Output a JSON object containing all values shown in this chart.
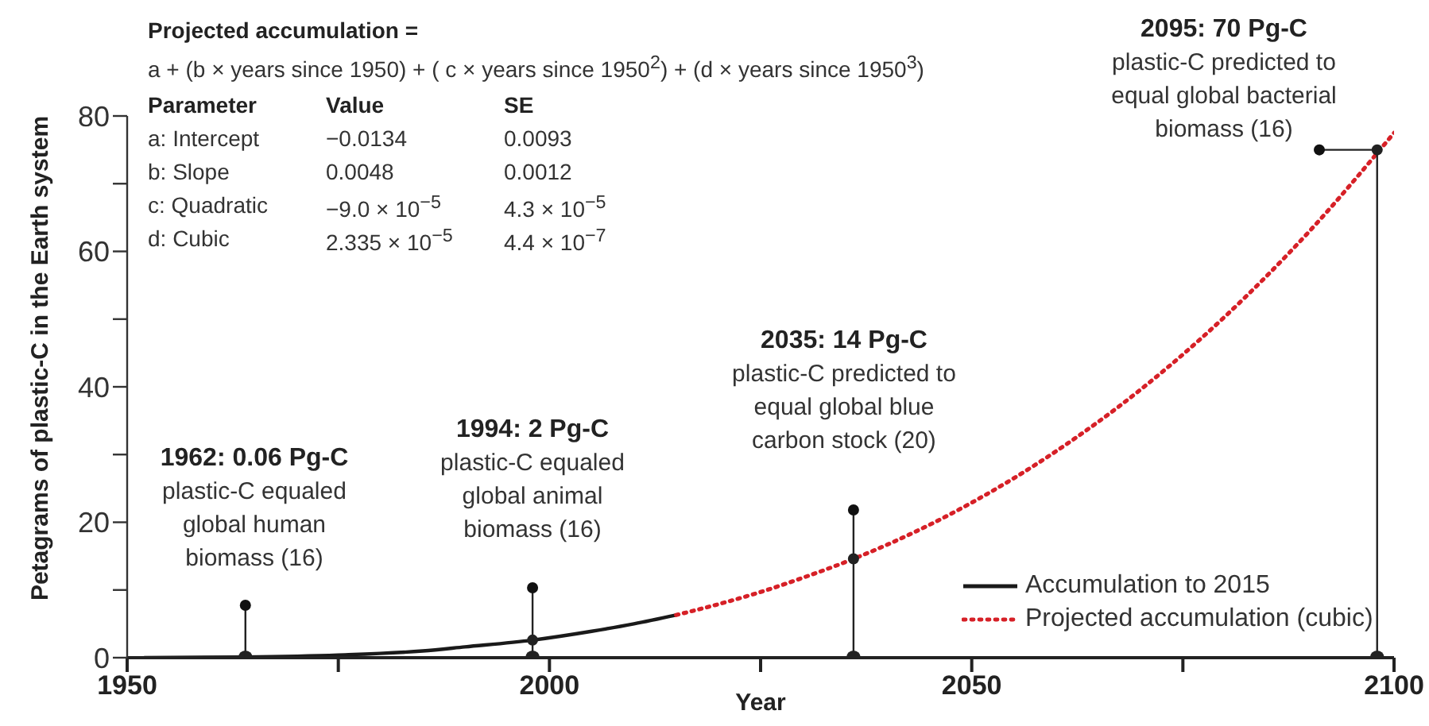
{
  "chart_data": {
    "type": "line",
    "xlabel": "Year",
    "ylabel": "Petagrams of plastic-C in the Earth system",
    "xlim": [
      1950,
      2100
    ],
    "xticks": [
      1950,
      {
        "value": 1975,
        "label": null
      },
      2000,
      {
        "value": 2025,
        "label": null
      },
      2050,
      {
        "value": 2075,
        "label": null
      },
      2100
    ],
    "ylim": [
      0,
      80
    ],
    "yticks": [
      0,
      {
        "value": 10,
        "label": null
      },
      20,
      {
        "value": 30,
        "label": null
      },
      40,
      {
        "value": 50,
        "label": null
      },
      60,
      {
        "value": 70,
        "label": null
      },
      80
    ],
    "grid": false,
    "legend": "bottom right",
    "marker": "none",
    "series": [
      {
        "name": "Accumulation to 2015",
        "color": "#1a1a1a",
        "line_style": "solid",
        "x": [
          1952,
          1964,
          1975,
          1985,
          1990,
          1998,
          2005,
          2010,
          2015
        ],
        "values": [
          0,
          0.1,
          0.4,
          1.0,
          1.6,
          2.6,
          3.9,
          5.0,
          6.3
        ]
      },
      {
        "name": "Projected accumulation (cubic)",
        "color": "#d62027",
        "line_style": "dotted",
        "x": [
          2015,
          2020,
          2025,
          2030,
          2036,
          2040,
          2050,
          2060,
          2070,
          2080,
          2090,
          2100
        ],
        "values": [
          6.3,
          7.9,
          9.7,
          11.8,
          14.6,
          16.7,
          22.9,
          30.5,
          39.6,
          50.4,
          63,
          77.5
        ]
      },
      {
        "type": "lollipop",
        "color": "#222222",
        "marker": "circle",
        "x": [
          1998,
          2036,
          2098
        ],
        "values": [
          2.6,
          14.6,
          75
        ]
      },
      {
        "type": "scatter",
        "color": "#222222",
        "marker": "circle",
        "x": [
          1964,
          1998,
          2036,
          2098
        ],
        "values": [
          0,
          0,
          0,
          0
        ]
      }
    ],
    "annotations": [
      "Projected accumulation =",
      "a + (b × years since 1950) + ( c × years since 1950$^{2}$) + (d × years since 1950$^{3}$)",
      "Parameter",
      "Value",
      "SE",
      "a: Intercept",
      "−0.0134",
      "0.0093",
      "b: Slope",
      "0.0048",
      "0.0012",
      "c: Quadratic",
      "−9.0 × 10$^{−5}$",
      "4.3 × 10$^{−5}$",
      "d: Cubic",
      "2.335 × 10$^{−5}$",
      "4.4 × 10$^{−7}$",
      "1962: 0.06 Pg-C\nplastic-C equaled\nglobal human\nbiomass (16)",
      "1994: 2 Pg-C\nplastic-C equaled\nglobal animal\nbiomass (16)",
      "2035: 14 Pg-C\nplastic-C predicted to\nequal global blue\ncarbon stock (20)",
      "2095: 70 Pg-C\nplastic-C predicted to\nequal global bacterial\nbiomass (16)"
    ]
  }
}
